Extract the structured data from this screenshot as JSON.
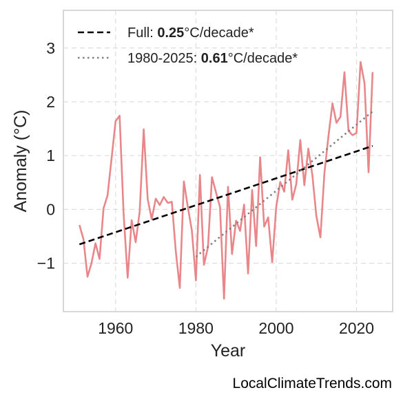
{
  "chart_data": {
    "type": "line",
    "xlabel": "Year",
    "ylabel": "Anomaly (°C)",
    "xlim": [
      1947,
      2029
    ],
    "ylim": [
      -1.9,
      3.7
    ],
    "x_ticks": [
      1960,
      1980,
      2000,
      2020
    ],
    "y_ticks": [
      -1,
      0,
      1,
      2,
      3
    ],
    "y_tick_labels": [
      "−1",
      "0",
      "1",
      "2",
      "3"
    ],
    "grid": true,
    "legend_position": "top-left",
    "series": [
      {
        "kind": "anomaly",
        "color": "#e8868a",
        "x": [
          1951,
          1952,
          1953,
          1954,
          1955,
          1956,
          1957,
          1958,
          1959,
          1960,
          1961,
          1962,
          1963,
          1964,
          1965,
          1966,
          1967,
          1968,
          1969,
          1970,
          1971,
          1972,
          1973,
          1974,
          1975,
          1976,
          1977,
          1978,
          1979,
          1980,
          1981,
          1982,
          1983,
          1984,
          1985,
          1986,
          1987,
          1988,
          1989,
          1990,
          1991,
          1992,
          1993,
          1994,
          1995,
          1996,
          1997,
          1998,
          1999,
          2000,
          2001,
          2002,
          2003,
          2004,
          2005,
          2006,
          2007,
          2008,
          2009,
          2010,
          2011,
          2012,
          2013,
          2014,
          2015,
          2016,
          2017,
          2018,
          2019,
          2020,
          2021,
          2022,
          2023,
          2024
        ],
        "y": [
          -0.29,
          -0.55,
          -1.25,
          -1.0,
          -0.63,
          -0.92,
          0.02,
          0.26,
          0.95,
          1.64,
          1.74,
          -0.07,
          -1.27,
          -0.2,
          -0.61,
          -0.04,
          1.49,
          0.19,
          -0.18,
          0.2,
          0.08,
          0.23,
          0.12,
          0.14,
          -0.78,
          -1.46,
          0.52,
          0.04,
          -0.39,
          -1.32,
          0.64,
          -1.03,
          -0.7,
          0.6,
          0.32,
          0.05,
          -1.66,
          0.42,
          -0.83,
          -0.21,
          -0.4,
          0.09,
          -1.19,
          0.36,
          -0.68,
          0.97,
          -0.32,
          -0.15,
          -0.98,
          0.05,
          0.51,
          0.33,
          1.1,
          0.18,
          0.47,
          1.29,
          0.45,
          1.13,
          0.64,
          -0.12,
          -0.52,
          0.67,
          1.35,
          1.97,
          1.61,
          1.72,
          2.55,
          1.46,
          1.38,
          1.42,
          2.74,
          2.34,
          0.69,
          2.55
        ]
      },
      {
        "kind": "trend",
        "name": "Full: 0.25°C/decade*",
        "legend_prefix": "Full: ",
        "legend_value": "0.25",
        "legend_suffix": "°C/decade*",
        "color": "#000000",
        "style": "dashed",
        "x": [
          1951,
          2024
        ],
        "y": [
          -0.65,
          1.18
        ]
      },
      {
        "kind": "trend",
        "name": "1980-2025: 0.61°C/decade*",
        "legend_prefix": "1980-2025: ",
        "legend_value": "0.61",
        "legend_suffix": "°C/decade*",
        "color": "#808080",
        "style": "dotted",
        "x": [
          1980,
          2024
        ],
        "y": [
          -0.88,
          1.82
        ]
      }
    ]
  },
  "watermark": "LocalClimateTrends.com"
}
